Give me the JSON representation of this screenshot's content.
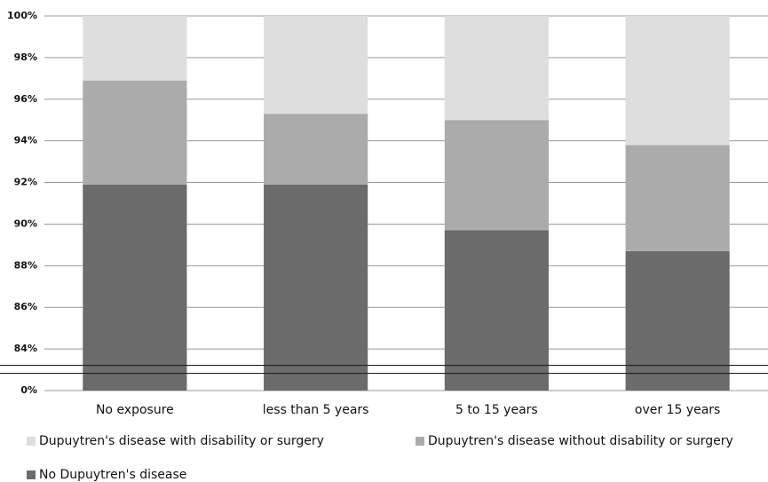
{
  "chart_data": {
    "type": "stacked_bar",
    "categories": [
      "No exposure",
      "less than 5 years",
      "5 to 15 years",
      "over 15 years"
    ],
    "series": [
      {
        "name": "Dupuytren's disease with disability or surgery",
        "color": "#dedede",
        "values": [
          3.1,
          4.7,
          5.0,
          6.2
        ]
      },
      {
        "name": "Dupuytren's disease without disability or surgery",
        "color": "#ababab",
        "values": [
          5.0,
          3.4,
          5.3,
          5.1
        ]
      },
      {
        "name": "No Dupuytren's disease",
        "color": "#6b6b6b",
        "values": [
          91.9,
          91.9,
          89.7,
          88.7
        ]
      }
    ],
    "ylim": [
      0,
      100
    ],
    "yticks": [
      {
        "value": 0,
        "label": "0%"
      },
      {
        "value": 84,
        "label": "84%"
      },
      {
        "value": 86,
        "label": "86%"
      },
      {
        "value": 88,
        "label": "88%"
      },
      {
        "value": 90,
        "label": "90%"
      },
      {
        "value": 92,
        "label": "92%"
      },
      {
        "value": 94,
        "label": "94%"
      },
      {
        "value": 96,
        "label": "96%"
      },
      {
        "value": 98,
        "label": "98%"
      },
      {
        "value": 100,
        "label": "100%"
      }
    ],
    "axis_break": true,
    "grid": true,
    "legend": "bottom"
  }
}
